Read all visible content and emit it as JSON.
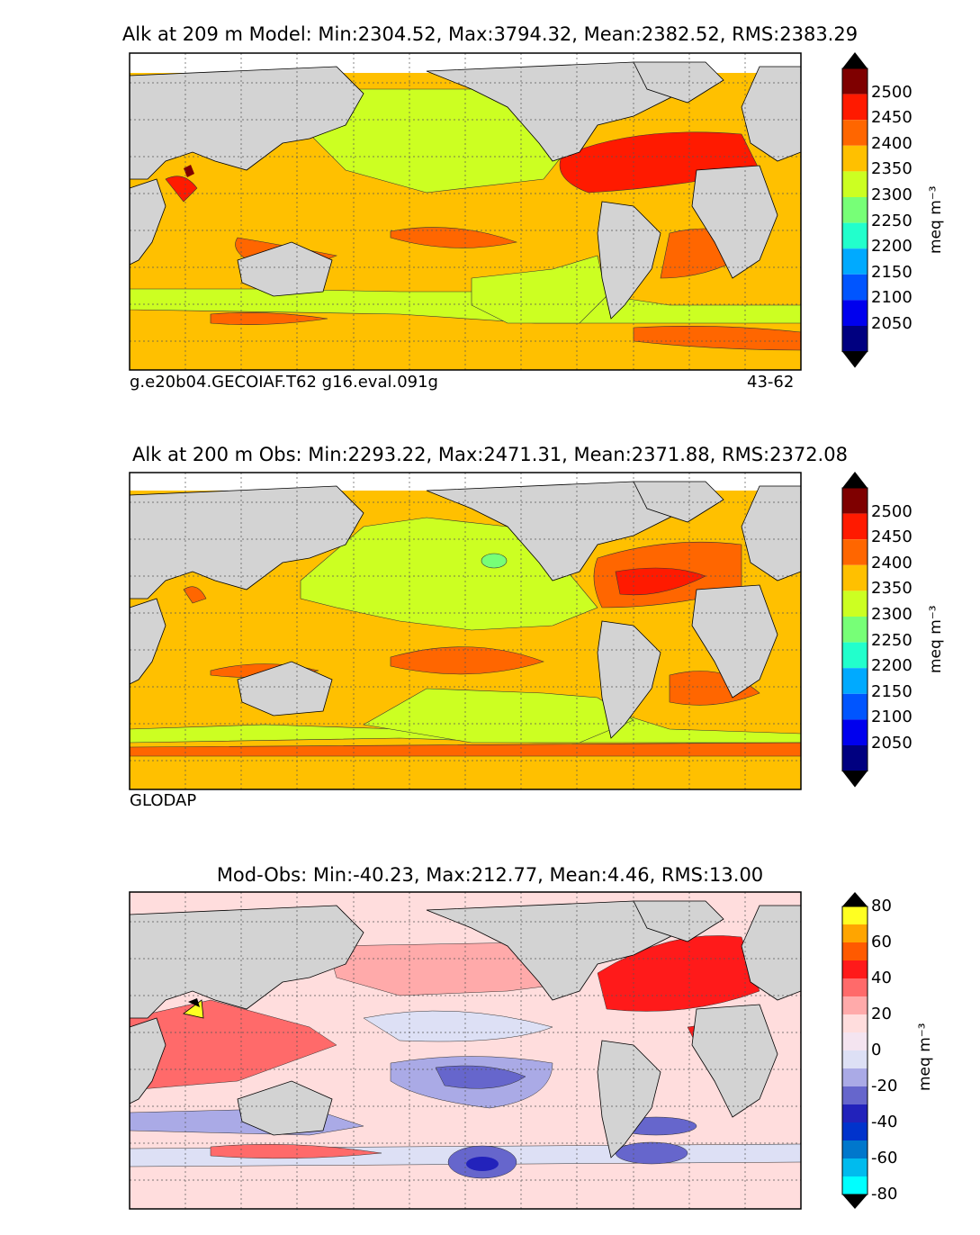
{
  "panels": [
    {
      "title": "Alk at 209 m Model: Min:2304.52, Max:3794.32, Mean:2382.52, RMS:2383.29",
      "left_caption": "g.e20b04.GECOIAF.T62 g16.eval.091g",
      "right_caption": "43-62",
      "field": "model"
    },
    {
      "title": "Alk at 200 m Obs: Min:2293.22, Max:2471.31, Mean:2371.88, RMS:2372.08",
      "left_caption": "GLODAP",
      "right_caption": "",
      "field": "obs"
    },
    {
      "title": "Mod-Obs: Min:-40.23, Max:212.77, Mean:4.46, RMS:13.00",
      "left_caption": "",
      "right_caption": "",
      "field": "diff"
    }
  ],
  "colorbars": {
    "alk": {
      "unit": "meq m⁻³",
      "ticks": [
        "2500",
        "2450",
        "2400",
        "2350",
        "2300",
        "2250",
        "2200",
        "2150",
        "2100",
        "2050"
      ],
      "colors": [
        "#7f0000",
        "#ff1a00",
        "#ff6600",
        "#ffc000",
        "#ccff22",
        "#77ff77",
        "#22ffcc",
        "#00aaff",
        "#0055ff",
        "#0000ee",
        "#000080"
      ]
    },
    "diff": {
      "unit": "meq m⁻³",
      "ticks": [
        "80",
        "60",
        "40",
        "20",
        "0",
        "-20",
        "-40",
        "-60",
        "-80"
      ],
      "colors": [
        "#ffff22",
        "#ffa500",
        "#ff5a00",
        "#ff1a1a",
        "#ff6a6a",
        "#ffaaaa",
        "#ffdddd",
        "#dde0f5",
        "#aaaae6",
        "#6666cc",
        "#2222bb",
        "#0033cc",
        "#0077cc",
        "#00bbee",
        "#00ffff"
      ]
    }
  },
  "chart_data": [
    {
      "type": "heatmap",
      "title": "Alk at 209 m Model: Min:2304.52, Max:3794.32, Mean:2382.52, RMS:2383.29",
      "variable": "Alkalinity (model, 209 m)",
      "units": "meq m^-3",
      "stats": {
        "min": 2304.52,
        "max": 3794.32,
        "mean": 2382.52,
        "rms": 2383.29
      },
      "contour_levels": [
        2050,
        2100,
        2150,
        2200,
        2250,
        2300,
        2350,
        2400,
        2450,
        2500
      ],
      "color_range": [
        2000,
        2550
      ],
      "xlim": [
        20,
        380
      ],
      "ylim": [
        -80,
        90
      ],
      "dominant_regions": {
        "north_atlantic": 2450,
        "arabian_sea": 2450,
        "pacific_north": 2320,
        "subtropical_gyres": 2400,
        "southern_ocean": 2340
      }
    },
    {
      "type": "heatmap",
      "title": "Alk at 200 m Obs: Min:2293.22, Max:2471.31, Mean:2371.88, RMS:2372.08",
      "variable": "Alkalinity (GLODAP obs, 200 m)",
      "units": "meq m^-3",
      "stats": {
        "min": 2293.22,
        "max": 2471.31,
        "mean": 2371.88,
        "rms": 2372.08
      },
      "contour_levels": [
        2050,
        2100,
        2150,
        2200,
        2250,
        2300,
        2350,
        2400,
        2450,
        2500
      ],
      "color_range": [
        2000,
        2550
      ],
      "xlim": [
        20,
        380
      ],
      "ylim": [
        -80,
        90
      ]
    },
    {
      "type": "heatmap",
      "title": "Mod-Obs: Min:-40.23, Max:212.77, Mean:4.46, RMS:13.00",
      "variable": "Alkalinity difference (model - obs)",
      "units": "meq m^-3",
      "stats": {
        "min": -40.23,
        "max": 212.77,
        "mean": 4.46,
        "rms": 13.0
      },
      "contour_levels": [
        -80,
        -70,
        -60,
        -50,
        -40,
        -30,
        -20,
        -10,
        0,
        10,
        20,
        30,
        40,
        50,
        60,
        70,
        80
      ],
      "color_range": [
        -80,
        80
      ],
      "xlim": [
        20,
        380
      ],
      "ylim": [
        -80,
        90
      ]
    }
  ]
}
